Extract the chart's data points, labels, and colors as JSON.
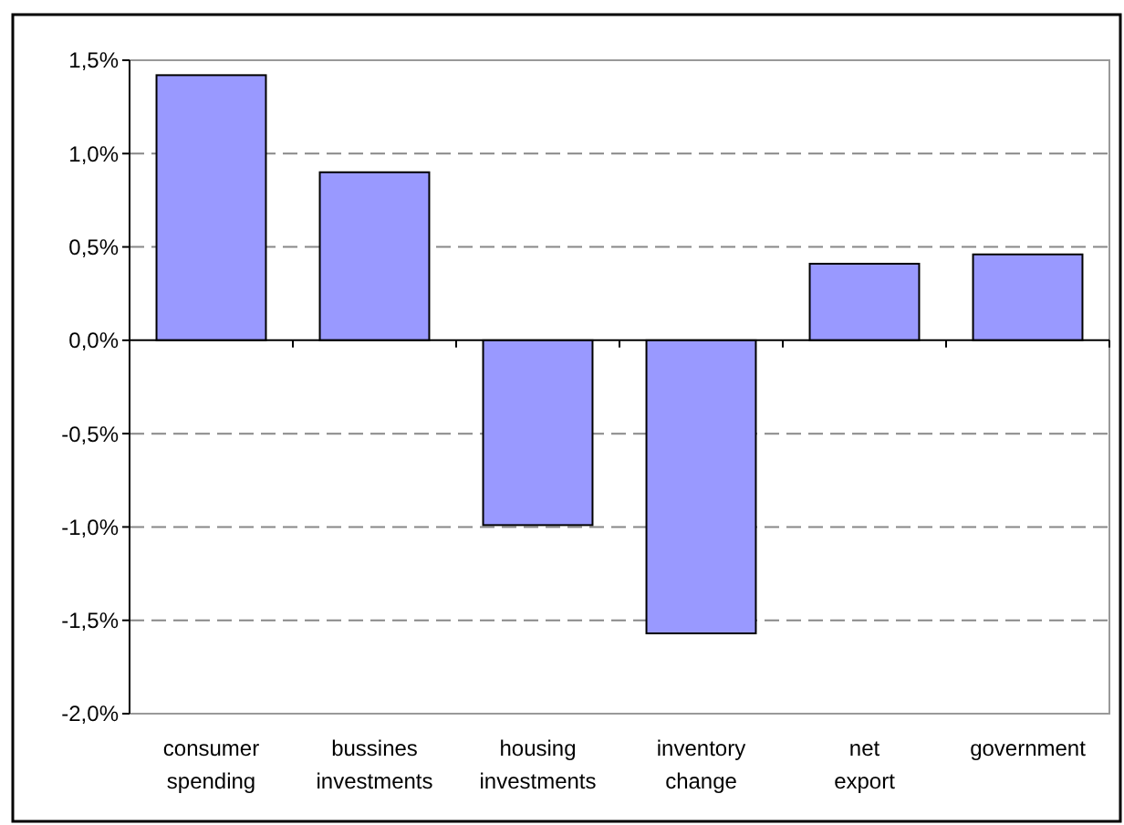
{
  "chart_data": {
    "type": "bar",
    "categories": [
      "consumer spending",
      "bussines investments",
      "housing investments",
      "inventory change",
      "net export",
      "government"
    ],
    "values": [
      1.42,
      0.9,
      -0.99,
      -1.57,
      0.41,
      0.46
    ],
    "color": "#9999ff",
    "ylim": [
      -2,
      1.5
    ],
    "yticks": [
      {
        "value": -2,
        "label": "-2,0%"
      },
      {
        "value": -1.5,
        "label": "-1,5%"
      },
      {
        "value": -1,
        "label": "-1,0%"
      },
      {
        "value": -0.5,
        "label": "-0,5%"
      },
      {
        "value": 0,
        "label": "0,0%"
      },
      {
        "value": 0.5,
        "label": "0,5%"
      },
      {
        "value": 1,
        "label": "1,0%"
      },
      {
        "value": 1.5,
        "label": "1,5%"
      }
    ],
    "grid": "y",
    "line_style": "dashed"
  }
}
